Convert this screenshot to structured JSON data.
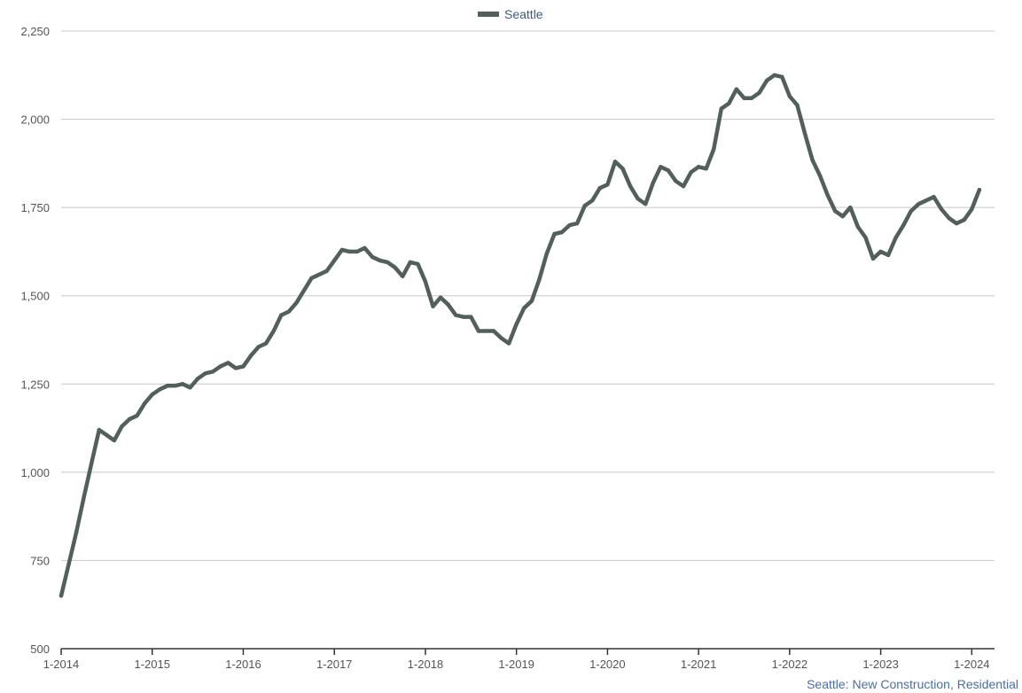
{
  "chart_data": {
    "type": "line",
    "title": "",
    "xlabel": "",
    "ylabel": "",
    "ylim": [
      500,
      2250
    ],
    "yticks": [
      "500",
      "750",
      "1,000",
      "1,250",
      "1,500",
      "1,750",
      "2,000",
      "2,250"
    ],
    "ytick_values": [
      500,
      750,
      1000,
      1250,
      1500,
      1750,
      2000,
      2250
    ],
    "xticks": [
      "1-2014",
      "1-2015",
      "1-2016",
      "1-2017",
      "1-2018",
      "1-2019",
      "1-2020",
      "1-2021",
      "1-2022",
      "1-2023",
      "1-2024"
    ],
    "grid": true,
    "legend_position": "top-center",
    "line_color": "#535f5b",
    "series": [
      {
        "name": "Seattle",
        "x": [
          "2014-01",
          "2014-02",
          "2014-03",
          "2014-04",
          "2014-05",
          "2014-06",
          "2014-07",
          "2014-08",
          "2014-09",
          "2014-10",
          "2014-11",
          "2014-12",
          "2015-01",
          "2015-02",
          "2015-03",
          "2015-04",
          "2015-05",
          "2015-06",
          "2015-07",
          "2015-08",
          "2015-09",
          "2015-10",
          "2015-11",
          "2015-12",
          "2016-01",
          "2016-02",
          "2016-03",
          "2016-04",
          "2016-05",
          "2016-06",
          "2016-07",
          "2016-08",
          "2016-09",
          "2016-10",
          "2016-11",
          "2016-12",
          "2017-01",
          "2017-02",
          "2017-03",
          "2017-04",
          "2017-05",
          "2017-06",
          "2017-07",
          "2017-08",
          "2017-09",
          "2017-10",
          "2017-11",
          "2017-12",
          "2018-01",
          "2018-02",
          "2018-03",
          "2018-04",
          "2018-05",
          "2018-06",
          "2018-07",
          "2018-08",
          "2018-09",
          "2018-10",
          "2018-11",
          "2018-12",
          "2019-01",
          "2019-02",
          "2019-03",
          "2019-04",
          "2019-05",
          "2019-06",
          "2019-07",
          "2019-08",
          "2019-09",
          "2019-10",
          "2019-11",
          "2019-12",
          "2020-01",
          "2020-02",
          "2020-03",
          "2020-04",
          "2020-05",
          "2020-06",
          "2020-07",
          "2020-08",
          "2020-09",
          "2020-10",
          "2020-11",
          "2020-12",
          "2021-01",
          "2021-02",
          "2021-03",
          "2021-04",
          "2021-05",
          "2021-06",
          "2021-07",
          "2021-08",
          "2021-09",
          "2021-10",
          "2021-11",
          "2021-12",
          "2022-01",
          "2022-02",
          "2022-03",
          "2022-04",
          "2022-05",
          "2022-06",
          "2022-07",
          "2022-08",
          "2022-09",
          "2022-10",
          "2022-11",
          "2022-12",
          "2023-01",
          "2023-02",
          "2023-03",
          "2023-04",
          "2023-05",
          "2023-06",
          "2023-07",
          "2023-08",
          "2023-09",
          "2023-10",
          "2023-11",
          "2023-12",
          "2024-01",
          "2024-02"
        ],
        "values": [
          650,
          740,
          830,
          930,
          1025,
          1120,
          1105,
          1090,
          1130,
          1150,
          1160,
          1195,
          1220,
          1235,
          1245,
          1245,
          1250,
          1240,
          1265,
          1280,
          1285,
          1300,
          1310,
          1295,
          1300,
          1330,
          1355,
          1365,
          1400,
          1445,
          1455,
          1480,
          1515,
          1550,
          1560,
          1570,
          1600,
          1630,
          1625,
          1625,
          1635,
          1610,
          1600,
          1595,
          1580,
          1555,
          1595,
          1590,
          1540,
          1470,
          1495,
          1475,
          1445,
          1440,
          1440,
          1400,
          1400,
          1400,
          1380,
          1365,
          1420,
          1465,
          1485,
          1545,
          1620,
          1675,
          1680,
          1700,
          1705,
          1755,
          1770,
          1805,
          1815,
          1880,
          1860,
          1810,
          1775,
          1760,
          1820,
          1865,
          1855,
          1825,
          1810,
          1850,
          1865,
          1860,
          1915,
          2030,
          2045,
          2085,
          2060,
          2060,
          2075,
          2110,
          2125,
          2120,
          2065,
          2040,
          1960,
          1885,
          1840,
          1785,
          1740,
          1725,
          1750,
          1695,
          1665,
          1605,
          1625,
          1615,
          1665,
          1700,
          1740,
          1760,
          1770,
          1780,
          1745,
          1720,
          1705,
          1715,
          1745,
          1800
        ]
      }
    ]
  },
  "legend": {
    "label": "Seattle"
  },
  "source_note": "Seattle: New Construction, Residential"
}
